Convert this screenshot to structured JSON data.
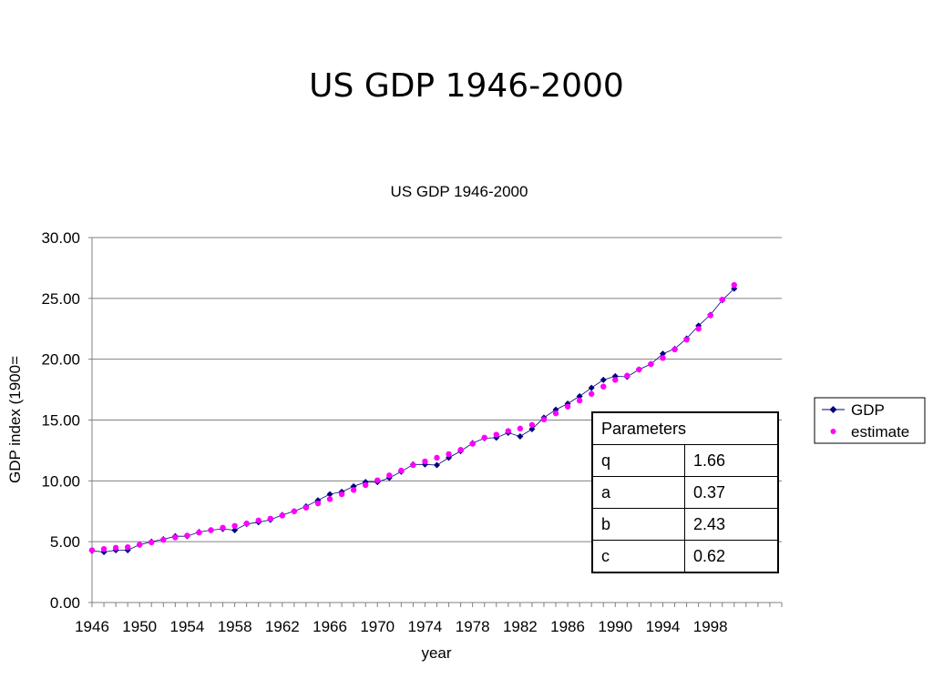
{
  "slide_title": "US GDP 1946-2000",
  "chart_data": {
    "type": "scatter",
    "title": "US GDP 1946-2000",
    "xlabel": "year",
    "ylabel": "GDP index (1900=",
    "xlim": [
      1946,
      2004
    ],
    "ylim": [
      0,
      30
    ],
    "x_ticks": [
      1946,
      1950,
      1954,
      1958,
      1962,
      1966,
      1970,
      1974,
      1978,
      1982,
      1986,
      1990,
      1994,
      1998
    ],
    "y_ticks": [
      "0.00",
      "5.00",
      "10.00",
      "15.00",
      "20.00",
      "25.00",
      "30.00"
    ],
    "y_tick_values": [
      0,
      5,
      10,
      15,
      20,
      25,
      30
    ],
    "grid": "horizontal",
    "legend_position": "right",
    "series": [
      {
        "name": "GDP",
        "style": "line-with-diamond-markers",
        "color": "#000080",
        "x": [
          1946,
          1947,
          1948,
          1949,
          1950,
          1951,
          1952,
          1953,
          1954,
          1955,
          1956,
          1957,
          1958,
          1959,
          1960,
          1961,
          1962,
          1963,
          1964,
          1965,
          1966,
          1967,
          1968,
          1969,
          1970,
          1971,
          1972,
          1973,
          1974,
          1975,
          1976,
          1977,
          1978,
          1979,
          1980,
          1981,
          1982,
          1983,
          1984,
          1985,
          1986,
          1987,
          1988,
          1989,
          1990,
          1991,
          1992,
          1993,
          1994,
          1995,
          1996,
          1997,
          1998,
          1999,
          2000
        ],
        "values": [
          4.25,
          4.15,
          4.3,
          4.3,
          4.75,
          5.0,
          5.2,
          5.45,
          5.45,
          5.8,
          5.95,
          6.05,
          5.95,
          6.45,
          6.6,
          6.8,
          7.2,
          7.5,
          7.9,
          8.4,
          8.9,
          9.1,
          9.55,
          9.9,
          9.9,
          10.25,
          10.75,
          11.35,
          11.35,
          11.3,
          11.9,
          12.45,
          13.1,
          13.5,
          13.55,
          13.95,
          13.65,
          14.25,
          15.2,
          15.85,
          16.35,
          16.95,
          17.65,
          18.3,
          18.6,
          18.55,
          19.15,
          19.6,
          20.45,
          20.85,
          21.7,
          22.75,
          23.65,
          24.85,
          25.8
        ]
      },
      {
        "name": "estimate",
        "style": "markers",
        "color": "#ff00ff",
        "x": [
          1946,
          1947,
          1948,
          1949,
          1950,
          1951,
          1952,
          1953,
          1954,
          1955,
          1956,
          1957,
          1958,
          1959,
          1960,
          1961,
          1962,
          1963,
          1964,
          1965,
          1966,
          1967,
          1968,
          1969,
          1970,
          1971,
          1972,
          1973,
          1974,
          1975,
          1976,
          1977,
          1978,
          1979,
          1980,
          1981,
          1982,
          1983,
          1984,
          1985,
          1986,
          1987,
          1988,
          1989,
          1990,
          1991,
          1992,
          1993,
          1994,
          1995,
          1996,
          1997,
          1998,
          1999,
          2000
        ],
        "values": [
          4.3,
          4.4,
          4.5,
          4.55,
          4.75,
          4.95,
          5.15,
          5.35,
          5.5,
          5.75,
          5.95,
          6.15,
          6.3,
          6.5,
          6.75,
          6.9,
          7.15,
          7.5,
          7.8,
          8.15,
          8.5,
          8.9,
          9.25,
          9.65,
          10.05,
          10.45,
          10.85,
          11.3,
          11.6,
          11.9,
          12.2,
          12.55,
          13.05,
          13.55,
          13.8,
          14.1,
          14.3,
          14.6,
          15.05,
          15.55,
          16.1,
          16.6,
          17.15,
          17.75,
          18.3,
          18.65,
          19.15,
          19.6,
          20.1,
          20.8,
          21.6,
          22.5,
          23.6,
          24.9,
          26.1
        ]
      }
    ]
  },
  "params_table": {
    "header": "Parameters",
    "rows": [
      {
        "key": "q",
        "value": "1.66"
      },
      {
        "key": "a",
        "value": "0.37"
      },
      {
        "key": "b",
        "value": "2.43"
      },
      {
        "key": "c",
        "value": "0.62"
      }
    ]
  }
}
